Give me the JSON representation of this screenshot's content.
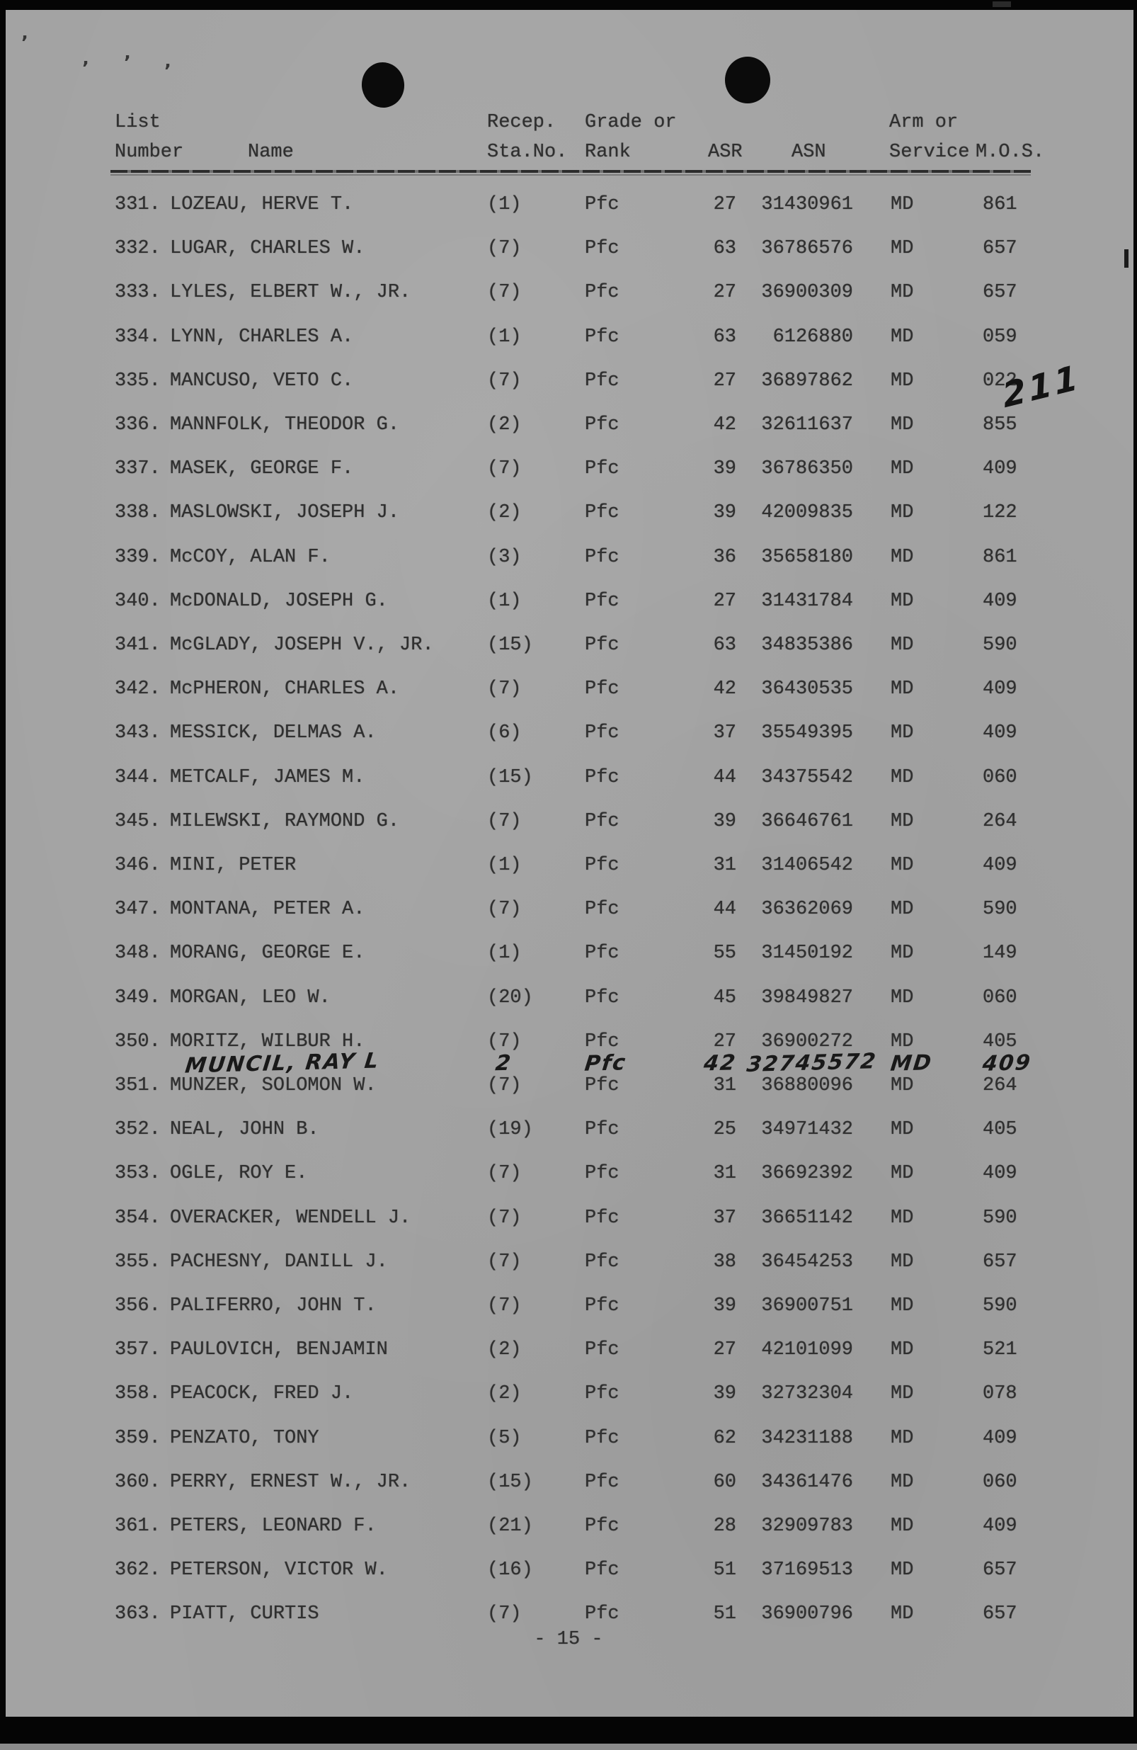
{
  "page": {
    "page_number": "- 15 -",
    "handwritten_note": "211"
  },
  "table": {
    "headers": {
      "list_line1": "List",
      "list_line2": "Number",
      "name": "Name",
      "recep_line1": "Recep.",
      "recep_line2": "Sta.No.",
      "grade_line1": "Grade or",
      "grade_line2": "Rank",
      "asr": "ASR",
      "asn": "ASN",
      "arm_line1": "Arm or",
      "arm_line2": "Service",
      "mos": "M.O.S."
    },
    "rows": [
      {
        "number": "331.",
        "name": "LOZEAU, HERVE T.",
        "recep": "(1)",
        "rank": "Pfc",
        "asr": "27",
        "asn": "31430961",
        "arm": "MD",
        "mos": "861",
        "handwritten": false
      },
      {
        "number": "332.",
        "name": "LUGAR, CHARLES W.",
        "recep": "(7)",
        "rank": "Pfc",
        "asr": "63",
        "asn": "36786576",
        "arm": "MD",
        "mos": "657",
        "handwritten": false
      },
      {
        "number": "333.",
        "name": "LYLES, ELBERT W., JR.",
        "recep": "(7)",
        "rank": "Pfc",
        "asr": "27",
        "asn": "36900309",
        "arm": "MD",
        "mos": "657",
        "handwritten": false
      },
      {
        "number": "334.",
        "name": "LYNN, CHARLES A.",
        "recep": "(1)",
        "rank": "Pfc",
        "asr": "63",
        "asn": "6126880",
        "arm": "MD",
        "mos": "059",
        "handwritten": false
      },
      {
        "number": "335.",
        "name": "MANCUSO, VETO C.",
        "recep": "(7)",
        "rank": "Pfc",
        "asr": "27",
        "asn": "36897862",
        "arm": "MD",
        "mos": "022",
        "handwritten": false
      },
      {
        "number": "336.",
        "name": "MANNFOLK, THEODOR G.",
        "recep": "(2)",
        "rank": "Pfc",
        "asr": "42",
        "asn": "32611637",
        "arm": "MD",
        "mos": "855",
        "handwritten": false
      },
      {
        "number": "337.",
        "name": "MASEK, GEORGE F.",
        "recep": "(7)",
        "rank": "Pfc",
        "asr": "39",
        "asn": "36786350",
        "arm": "MD",
        "mos": "409",
        "handwritten": false
      },
      {
        "number": "338.",
        "name": "MASLOWSKI, JOSEPH J.",
        "recep": "(2)",
        "rank": "Pfc",
        "asr": "39",
        "asn": "42009835",
        "arm": "MD",
        "mos": "122",
        "handwritten": false
      },
      {
        "number": "339.",
        "name": "McCOY, ALAN F.",
        "recep": "(3)",
        "rank": "Pfc",
        "asr": "36",
        "asn": "35658180",
        "arm": "MD",
        "mos": "861",
        "handwritten": false
      },
      {
        "number": "340.",
        "name": "McDONALD, JOSEPH G.",
        "recep": "(1)",
        "rank": "Pfc",
        "asr": "27",
        "asn": "31431784",
        "arm": "MD",
        "mos": "409",
        "handwritten": false
      },
      {
        "number": "341.",
        "name": "McGLADY, JOSEPH V., JR.",
        "recep": "(15)",
        "rank": "Pfc",
        "asr": "63",
        "asn": "34835386",
        "arm": "MD",
        "mos": "590",
        "handwritten": false
      },
      {
        "number": "342.",
        "name": "McPHERON, CHARLES A.",
        "recep": "(7)",
        "rank": "Pfc",
        "asr": "42",
        "asn": "36430535",
        "arm": "MD",
        "mos": "409",
        "handwritten": false
      },
      {
        "number": "343.",
        "name": "MESSICK, DELMAS A.",
        "recep": "(6)",
        "rank": "Pfc",
        "asr": "37",
        "asn": "35549395",
        "arm": "MD",
        "mos": "409",
        "handwritten": false
      },
      {
        "number": "344.",
        "name": "METCALF, JAMES M.",
        "recep": "(15)",
        "rank": "Pfc",
        "asr": "44",
        "asn": "34375542",
        "arm": "MD",
        "mos": "060",
        "handwritten": false
      },
      {
        "number": "345.",
        "name": "MILEWSKI, RAYMOND G.",
        "recep": "(7)",
        "rank": "Pfc",
        "asr": "39",
        "asn": "36646761",
        "arm": "MD",
        "mos": "264",
        "handwritten": false
      },
      {
        "number": "346.",
        "name": "MINI, PETER",
        "recep": "(1)",
        "rank": "Pfc",
        "asr": "31",
        "asn": "31406542",
        "arm": "MD",
        "mos": "409",
        "handwritten": false
      },
      {
        "number": "347.",
        "name": "MONTANA, PETER A.",
        "recep": "(7)",
        "rank": "Pfc",
        "asr": "44",
        "asn": "36362069",
        "arm": "MD",
        "mos": "590",
        "handwritten": false
      },
      {
        "number": "348.",
        "name": "MORANG, GEORGE E.",
        "recep": "(1)",
        "rank": "Pfc",
        "asr": "55",
        "asn": "31450192",
        "arm": "MD",
        "mos": "149",
        "handwritten": false
      },
      {
        "number": "349.",
        "name": "MORGAN, LEO W.",
        "recep": "(20)",
        "rank": "Pfc",
        "asr": "45",
        "asn": "39849827",
        "arm": "MD",
        "mos": "060",
        "handwritten": false
      },
      {
        "number": "350.",
        "name": "MORITZ, WILBUR H.",
        "recep": "(7)",
        "rank": "Pfc",
        "asr": "27",
        "asn": "36900272",
        "arm": "MD",
        "mos": "405",
        "handwritten": false
      },
      {
        "number": "",
        "name": "MUNCIL, RAY L",
        "recep": "2",
        "rank": "Pfc",
        "asr": "42",
        "asn": "32745572",
        "arm": "MD",
        "mos": "409",
        "handwritten": true
      },
      {
        "number": "351.",
        "name": "MUNZER, SOLOMON W.",
        "recep": "(7)",
        "rank": "Pfc",
        "asr": "31",
        "asn": "36880096",
        "arm": "MD",
        "mos": "264",
        "handwritten": false
      },
      {
        "number": "352.",
        "name": "NEAL, JOHN B.",
        "recep": "(19)",
        "rank": "Pfc",
        "asr": "25",
        "asn": "34971432",
        "arm": "MD",
        "mos": "405",
        "handwritten": false
      },
      {
        "number": "353.",
        "name": "OGLE, ROY E.",
        "recep": "(7)",
        "rank": "Pfc",
        "asr": "31",
        "asn": "36692392",
        "arm": "MD",
        "mos": "409",
        "handwritten": false
      },
      {
        "number": "354.",
        "name": "OVERACKER, WENDELL J.",
        "recep": "(7)",
        "rank": "Pfc",
        "asr": "37",
        "asn": "36651142",
        "arm": "MD",
        "mos": "590",
        "handwritten": false
      },
      {
        "number": "355.",
        "name": "PACHESNY, DANILL J.",
        "recep": "(7)",
        "rank": "Pfc",
        "asr": "38",
        "asn": "36454253",
        "arm": "MD",
        "mos": "657",
        "handwritten": false
      },
      {
        "number": "356.",
        "name": "PALIFERRO, JOHN T.",
        "recep": "(7)",
        "rank": "Pfc",
        "asr": "39",
        "asn": "36900751",
        "arm": "MD",
        "mos": "590",
        "handwritten": false
      },
      {
        "number": "357.",
        "name": "PAULOVICH, BENJAMIN",
        "recep": "(2)",
        "rank": "Pfc",
        "asr": "27",
        "asn": "42101099",
        "arm": "MD",
        "mos": "521",
        "handwritten": false
      },
      {
        "number": "358.",
        "name": "PEACOCK, FRED J.",
        "recep": "(2)",
        "rank": "Pfc",
        "asr": "39",
        "asn": "32732304",
        "arm": "MD",
        "mos": "078",
        "handwritten": false
      },
      {
        "number": "359.",
        "name": "PENZATO, TONY",
        "recep": "(5)",
        "rank": "Pfc",
        "asr": "62",
        "asn": "34231188",
        "arm": "MD",
        "mos": "409",
        "handwritten": false
      },
      {
        "number": "360.",
        "name": "PERRY, ERNEST W., JR.",
        "recep": "(15)",
        "rank": "Pfc",
        "asr": "60",
        "asn": "34361476",
        "arm": "MD",
        "mos": "060",
        "handwritten": false
      },
      {
        "number": "361.",
        "name": "PETERS, LEONARD F.",
        "recep": "(21)",
        "rank": "Pfc",
        "asr": "28",
        "asn": "32909783",
        "arm": "MD",
        "mos": "409",
        "handwritten": false
      },
      {
        "number": "362.",
        "name": "PETERSON, VICTOR W.",
        "recep": "(16)",
        "rank": "Pfc",
        "asr": "51",
        "asn": "37169513",
        "arm": "MD",
        "mos": "657",
        "handwritten": false
      },
      {
        "number": "363.",
        "name": "PIATT, CURTIS",
        "recep": "(7)",
        "rank": "Pfc",
        "asr": "51",
        "asn": "36900796",
        "arm": "MD",
        "mos": "657",
        "handwritten": false
      }
    ]
  }
}
